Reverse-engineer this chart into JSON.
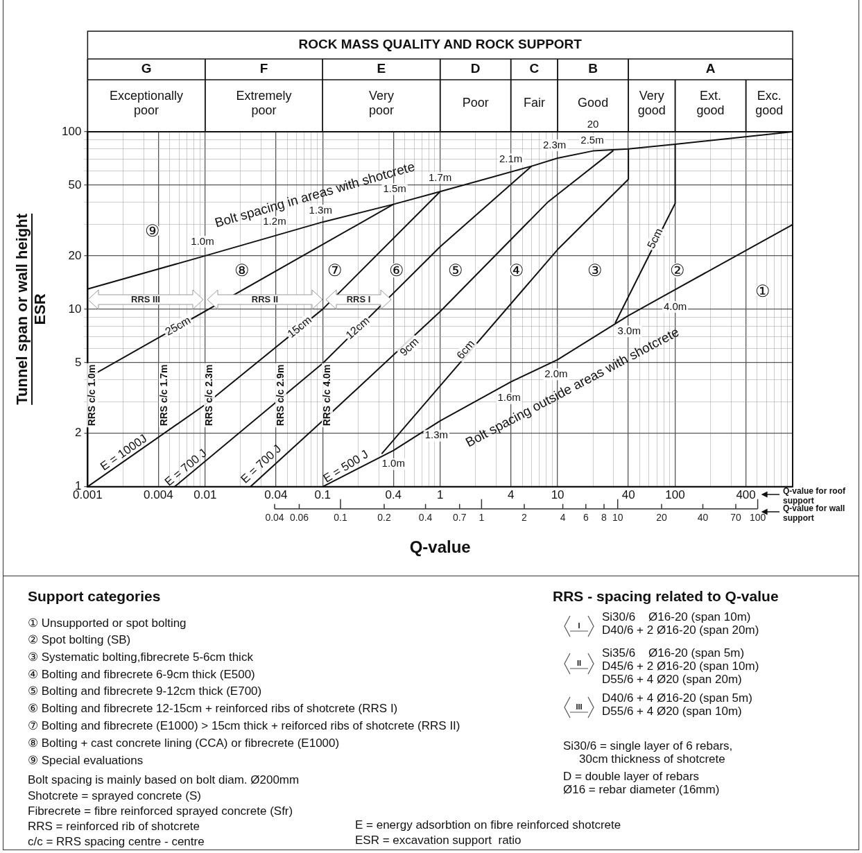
{
  "chart_data": {
    "type": "line",
    "title": "ROCK MASS QUALITY AND ROCK SUPPORT",
    "xlabel": "Q-value",
    "ylabel": "Tunnel span or wall height\nESR",
    "log": "xy",
    "grid": true,
    "legend": false,
    "xlim": [
      0.001,
      1000
    ],
    "ylim": [
      1,
      100
    ],
    "xticks": [
      0.001,
      {
        "value": 0.002,
        "label": null
      },
      {
        "value": 0.003,
        "label": null
      },
      0.004,
      {
        "value": 0.005,
        "label": null
      },
      {
        "value": 0.006,
        "label": null
      },
      {
        "value": 0.007,
        "label": null
      },
      {
        "value": 0.008,
        "label": null
      },
      {
        "value": 0.009,
        "label": null
      },
      0.01,
      {
        "value": 0.02,
        "label": null
      },
      {
        "value": 0.03,
        "label": null
      },
      0.04,
      {
        "value": 0.05,
        "label": null
      },
      {
        "value": 0.06,
        "label": null
      },
      {
        "value": 0.07,
        "label": null
      },
      {
        "value": 0.08,
        "label": null
      },
      {
        "value": 0.09,
        "label": null
      },
      0.1,
      {
        "value": 0.2,
        "label": null
      },
      {
        "value": 0.3,
        "label": null
      },
      0.4,
      {
        "value": 0.5,
        "label": null
      },
      {
        "value": 0.6,
        "label": null
      },
      {
        "value": 0.7,
        "label": null
      },
      {
        "value": 0.8,
        "label": null
      },
      {
        "value": 0.9,
        "label": null
      },
      1,
      {
        "value": 2,
        "label": null
      },
      {
        "value": 3,
        "label": null
      },
      4,
      {
        "value": 5,
        "label": null
      },
      {
        "value": 6,
        "label": null
      },
      {
        "value": 7,
        "label": null
      },
      {
        "value": 8,
        "label": null
      },
      {
        "value": 9,
        "label": null
      },
      10,
      {
        "value": 20,
        "label": null
      },
      {
        "value": 30,
        "label": null
      },
      40,
      {
        "value": 50,
        "label": null
      },
      {
        "value": 60,
        "label": null
      },
      {
        "value": 70,
        "label": null
      },
      {
        "value": 80,
        "label": null
      },
      {
        "value": 90,
        "label": null
      },
      100,
      {
        "value": 200,
        "label": null
      },
      {
        "value": 300,
        "label": null
      },
      400,
      {
        "value": 500,
        "label": null
      },
      {
        "value": 600,
        "label": null
      },
      {
        "value": 700,
        "label": null
      },
      {
        "value": 800,
        "label": null
      },
      {
        "value": 900,
        "label": null
      },
      {
        "value": 1000,
        "label": null
      }
    ],
    "yticks": [
      1,
      2,
      {
        "value": 3,
        "label": null
      },
      {
        "value": 4,
        "label": null
      },
      5,
      {
        "value": 6,
        "label": null
      },
      {
        "value": 7,
        "label": null
      },
      {
        "value": 8,
        "label": null
      },
      {
        "value": 9,
        "label": null
      },
      10,
      20,
      {
        "value": 30,
        "label": null
      },
      {
        "value": 40,
        "label": null
      },
      50,
      {
        "value": 60,
        "label": null
      },
      {
        "value": 70,
        "label": null
      },
      {
        "value": 80,
        "label": null
      },
      {
        "value": 90,
        "label": null
      },
      100
    ],
    "series": [
      {
        "color": "#111111",
        "x": [
          0.001,
          0.01,
          0.1,
          0.4,
          1,
          6,
          10,
          20,
          40,
          100,
          1000
        ],
        "values": [
          13,
          20,
          31,
          39,
          46,
          64,
          71,
          78,
          80,
          85,
          100
        ]
      },
      {
        "color": "#111111",
        "x": [
          0.1,
          0.4,
          1,
          4,
          10,
          40,
          100,
          1000
        ],
        "values": [
          1,
          1.6,
          2.35,
          3.9,
          5.2,
          9.2,
          12.9,
          30
        ]
      },
      {
        "color": "#111111",
        "x": [
          0.001,
          0.4
        ],
        "values": [
          4.1,
          39
        ]
      },
      {
        "color": "#111111",
        "x": [
          0.001,
          0.01,
          0.1,
          1
        ],
        "values": [
          1,
          2.9,
          10,
          46
        ]
      },
      {
        "color": "#111111",
        "x": [
          0.0055,
          0.1,
          1,
          6
        ],
        "values": [
          1,
          4.95,
          22.5,
          64
        ]
      },
      {
        "color": "#111111",
        "x": [
          0.0243,
          0.1,
          1,
          8.2,
          29.5
        ],
        "values": [
          1,
          2.35,
          9.7,
          40,
          78
        ]
      },
      {
        "color": "#111111",
        "x": [
          0.32,
          1,
          10,
          40,
          40
        ],
        "values": [
          1.54,
          3.7,
          21.7,
          54,
          80
        ]
      },
      {
        "color": "#111111",
        "x": [
          31,
          100,
          100
        ],
        "values": [
          8.4,
          39.5,
          85
        ]
      }
    ],
    "annotations": [
      {
        "text": "1.0m",
        "x": 0.0095,
        "y": 24
      },
      {
        "text": "1.2m",
        "x": 0.039,
        "y": 31
      },
      {
        "text": "1.3m",
        "x": 0.096,
        "y": 36
      },
      {
        "text": "1.5m",
        "x": 0.41,
        "y": 47.5
      },
      {
        "text": "1.7m",
        "x": 1,
        "y": 55
      },
      {
        "text": "2.1m",
        "x": 4,
        "y": 70
      },
      {
        "text": "2.3m",
        "x": 9.4,
        "y": 84
      },
      {
        "text": "2.5m",
        "x": 19.7,
        "y": 89
      },
      {
        "text": "1.0m",
        "x": 0.4,
        "y": 1.34
      },
      {
        "text": "1.3m",
        "x": 0.93,
        "y": 1.94
      },
      {
        "text": "1.6m",
        "x": 3.86,
        "y": 3.15
      },
      {
        "text": "2.0m",
        "x": 9.7,
        "y": 4.3
      },
      {
        "text": "3.0m",
        "x": 40.6,
        "y": 7.5
      },
      {
        "text": "4.0m",
        "x": 100,
        "y": 10.3
      },
      {
        "text": "25cm",
        "x": 0.0059,
        "y": 8
      },
      {
        "text": "15cm",
        "x": 0.064,
        "y": 7.9
      },
      {
        "text": "12cm",
        "x": 0.2,
        "y": 7.8
      },
      {
        "text": "9cm",
        "x": 0.55,
        "y": 6.1
      },
      {
        "text": "6cm",
        "x": 1.66,
        "y": 5.9
      },
      {
        "text": "5cm",
        "x": 68,
        "y": 25
      },
      {
        "text": "E = 1000J",
        "x": 0.0022,
        "y": 1.44
      },
      {
        "text": "E = 700 J",
        "x": 0.0075,
        "y": 1.19
      },
      {
        "text": "E = 700 J",
        "x": 0.033,
        "y": 1.25
      },
      {
        "text": "E = 500 J",
        "x": 0.17,
        "y": 1.2
      },
      {
        "text": "Bolt spacing in areas with shotcrete",
        "x": 0.1,
        "y": 31
      },
      {
        "text": "Bolt spacing outside areas with shotcrete",
        "x": 10,
        "y": 5.2
      },
      "Q-value for roof support",
      "Support categories",
      "① Unsupported or spot bolting",
      "② Spot bolting (SB)",
      "③ Systematic bolting,fibrecrete 5-6cm thick",
      "④ Bolting and fibrecrete 6-9cm thick (E500)",
      "⑤ Bolting and fibrecrete 9-12cm thick (E700)",
      "⑥ Bolting and fibrecrete 12-15cm + reinforced ribs of shotcrete (RRS I)",
      "⑦ Bolting and fibrecrete (E1000) > 15cm thick + reiforced ribs of shotcrete (RRS II)",
      "⑧ Bolting + cast concrete lining (CCA) or fibrecrete (E1000)",
      "⑨ Special evaluations",
      "Bolt spacing is mainly based on bolt diam. Ø200mm",
      "Shotcrete = sprayed concrete (S)",
      "Fibrecrete = fibre reinforced sprayed concrete (Sfr)",
      "RRS = reinforced rib of shotcrete",
      "c/c = RRS spacing centre - centre",
      "E = energy adsorbtion on fibre reinforced shotcrete",
      "ESR = excavation support  ratio",
      "RRS - spacing related to Q-value",
      "I",
      "Si30/6    Ø16-20 (span 10m)",
      "D40/6 + 2 Ø16-20 (span 20m)",
      "II",
      "Si35/6    Ø16-20 (span 5m)",
      "D45/6 + 2 Ø16-20 (span 10m)",
      "D55/6 + 4 Ø20 (span 20m)",
      "III",
      "D40/6 + 4 Ø16-20 (span 5m)",
      "D55/6 + 4 Ø20 (span 10m)",
      "Si30/6 = single layer of 6 rebars,",
      "30cm thickness of shotcrete",
      "D = double layer of rebars",
      "Ø16 = rebar diameter (16mm)",
      "G",
      "F",
      "E",
      "D",
      "C",
      "B",
      "A",
      "Exceptionally poor",
      "Extremely poor",
      "Very poor",
      "Poor",
      "Fair",
      "Good",
      "Very good",
      "Ext. good",
      "Exc. good",
      "20",
      "⑨",
      "⑧",
      "⑦",
      "⑥",
      "⑤",
      "④",
      "③",
      "②",
      "①",
      "RRS c/c 1.0m",
      "RRS c/c 1.7m",
      "RRS c/c 2.3m",
      "RRS c/c 2.9m",
      "RRS c/c 4.0m",
      "RRS III",
      "RRS II",
      "RRS I",
      "0.04",
      "0.06",
      "0.1",
      "0.2",
      "0.4",
      "0.7",
      "1",
      "2",
      "4",
      "6",
      "8",
      "10",
      "20",
      "40",
      "70",
      "100",
      "Q-value for wall support"
    ]
  }
}
